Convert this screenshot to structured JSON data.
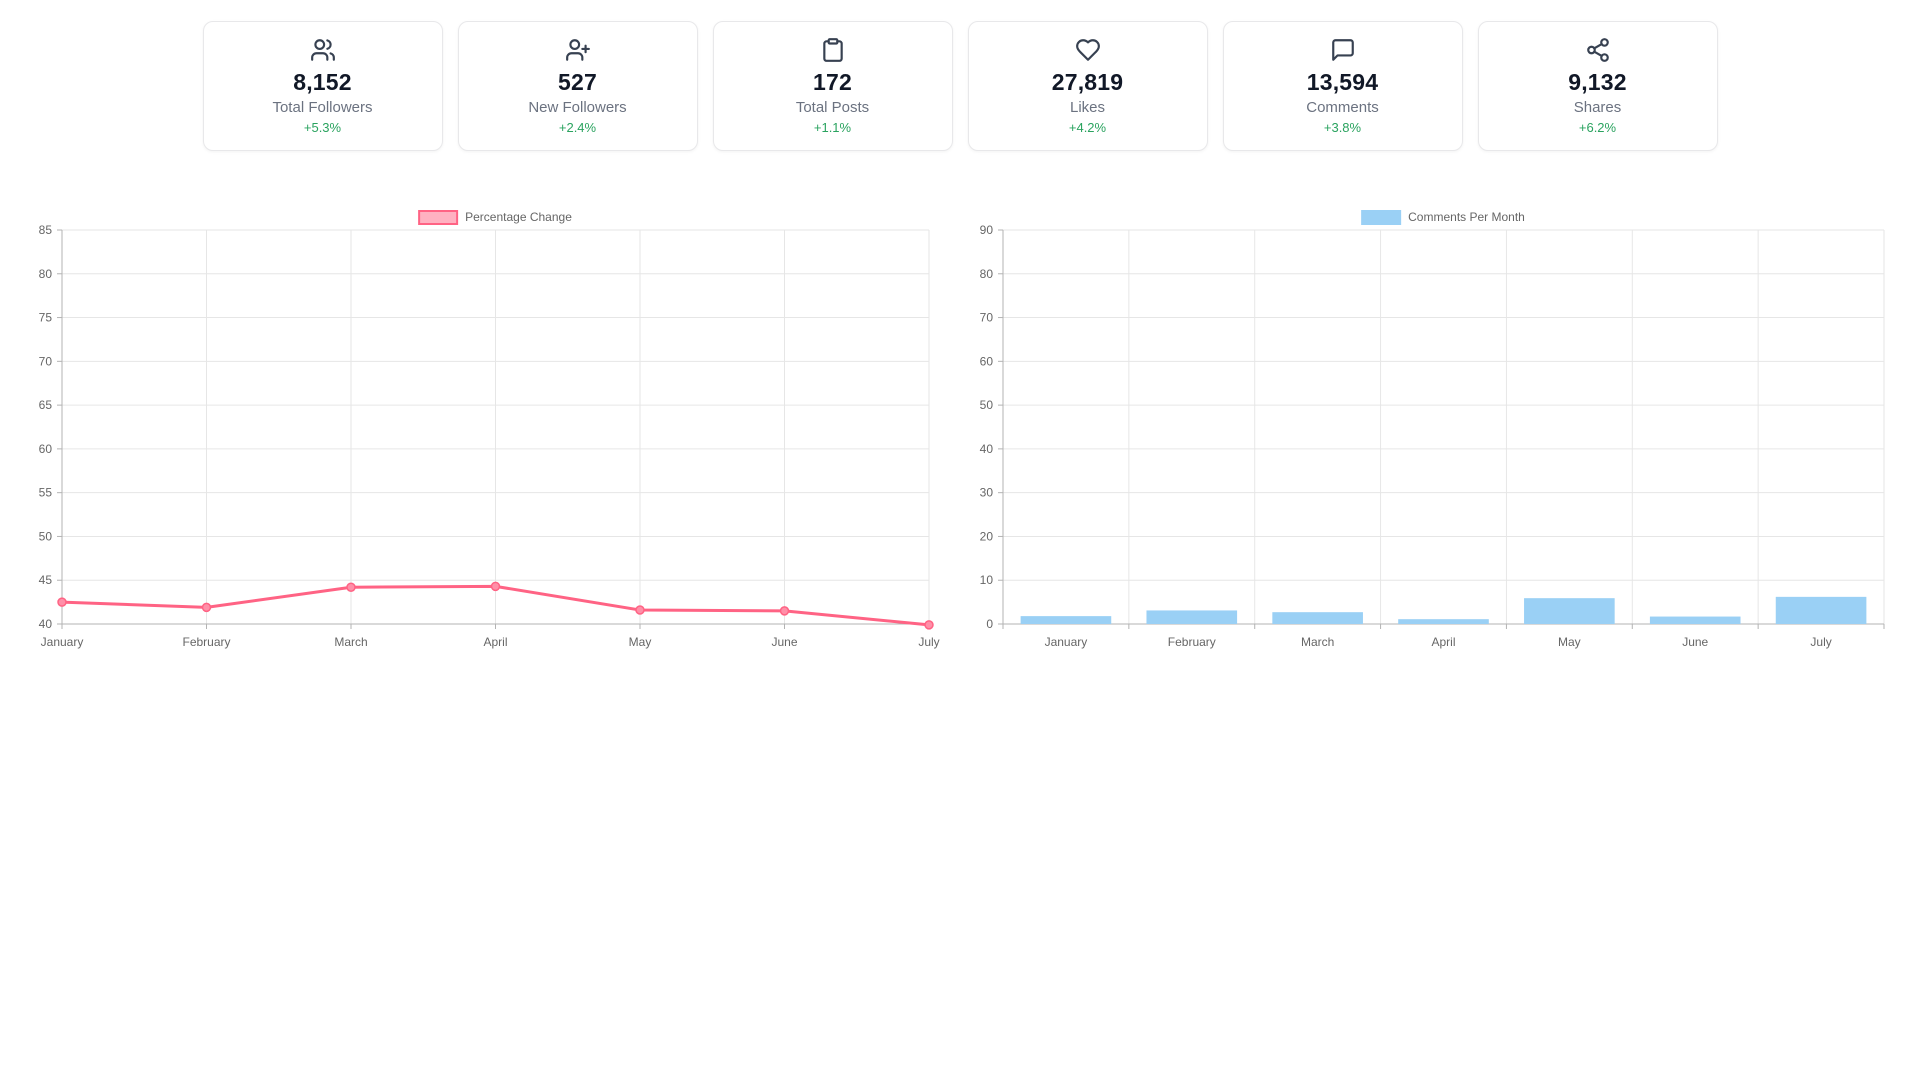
{
  "colors": {
    "page_background": "#ffffff",
    "card_border": "#e8e8ea",
    "card_value_text": "#111827",
    "card_label_text": "#6b7280",
    "positive_change_text": "#2aa35f",
    "card_icon": "#374151",
    "grid": "#e6e6e6",
    "axis": "#b3b3b3",
    "tick_text": "#666666"
  },
  "stats_cards": [
    {
      "icon": "users-icon",
      "value": "8,152",
      "label": "Total Followers",
      "change": "+5.3%"
    },
    {
      "icon": "user-plus-icon",
      "value": "527",
      "label": "New Followers",
      "change": "+2.4%"
    },
    {
      "icon": "clipboard-icon",
      "value": "172",
      "label": "Total Posts",
      "change": "+1.1%"
    },
    {
      "icon": "heart-icon",
      "value": "27,819",
      "label": "Likes",
      "change": "+4.2%"
    },
    {
      "icon": "message-square-icon",
      "value": "13,594",
      "label": "Comments",
      "change": "+3.8%"
    },
    {
      "icon": "share-icon",
      "value": "9,132",
      "label": "Shares",
      "change": "+6.2%"
    }
  ],
  "chart_data": [
    {
      "type": "line",
      "title": "",
      "legend": "Percentage Change",
      "legend_position": "top",
      "categories": [
        "January",
        "February",
        "March",
        "April",
        "May",
        "June",
        "July"
      ],
      "values": [
        42.5,
        41.9,
        44.2,
        44.3,
        41.6,
        41.5,
        39.9
      ],
      "xlabel": "",
      "ylabel": "",
      "ylim": [
        40,
        85
      ],
      "ytick_step": 5,
      "grid": true,
      "line_color": "#ff6384",
      "point_fill": "#ff8fa8",
      "legend_fill": "#ffb1c1",
      "legend_border": "#ff6384"
    },
    {
      "type": "bar",
      "title": "",
      "legend": "Comments Per Month",
      "legend_position": "top",
      "categories": [
        "January",
        "February",
        "March",
        "April",
        "May",
        "June",
        "July"
      ],
      "values": [
        1.8,
        3.1,
        2.7,
        1.1,
        5.9,
        1.7,
        6.2
      ],
      "xlabel": "",
      "ylabel": "",
      "ylim": [
        0,
        90
      ],
      "ytick_step": 10,
      "grid": true,
      "bar_color": "#9ad0f5",
      "legend_fill": "#9ad0f5",
      "legend_border": "#9ad0f5"
    }
  ]
}
